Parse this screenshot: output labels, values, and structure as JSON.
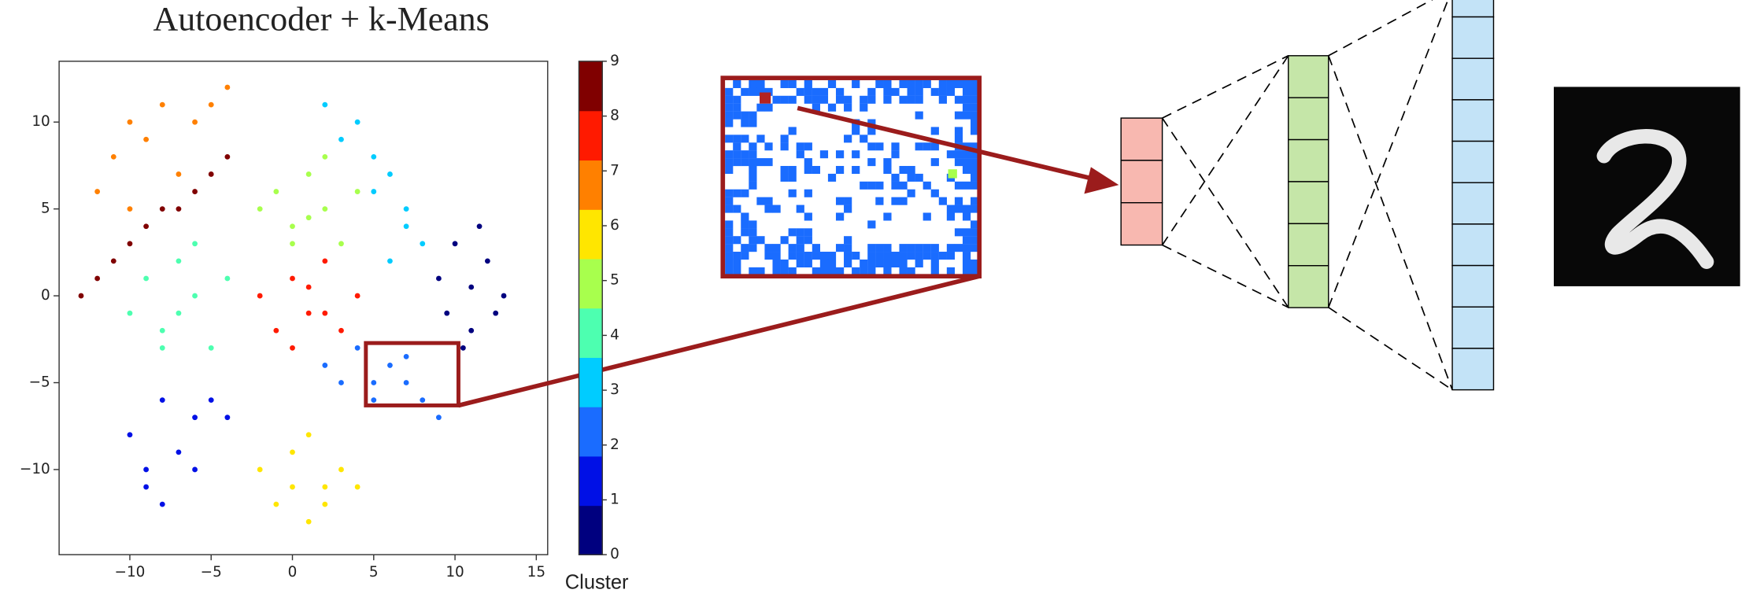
{
  "chart_data": {
    "type": "scatter",
    "title": "Autoencoder + k-Means",
    "xlim": [
      -14.35,
      15.7
    ],
    "ylim": [
      -14.9,
      13.5
    ],
    "xticks": [
      {
        "value": -10,
        "label": "−10"
      },
      {
        "value": -5,
        "label": "−5"
      },
      0,
      5,
      10,
      15
    ],
    "yticks": [
      {
        "value": -10,
        "label": "−10"
      },
      {
        "value": -5,
        "label": "−5"
      },
      0,
      5,
      10
    ],
    "colorbar": {
      "label": "Cluster",
      "clim": [
        0,
        9
      ],
      "ticks": [
        0,
        1,
        2,
        3,
        4,
        5,
        6,
        7,
        8,
        9
      ]
    },
    "series": [
      {
        "color": "#00007f",
        "x": [
          9,
          10,
          11,
          12,
          13,
          10.5,
          11.5,
          12.5,
          9.5,
          11
        ],
        "y": [
          1,
          3,
          -2,
          2,
          0,
          -3,
          4,
          -1,
          -1,
          0.5
        ]
      },
      {
        "color": "#0010e6",
        "x": [
          -10,
          -9,
          -8,
          -6,
          -5,
          -4,
          -7,
          -9,
          -8,
          -6
        ],
        "y": [
          -8,
          -10,
          -6,
          -7,
          -6,
          -7,
          -9,
          -11,
          -12,
          -10
        ]
      },
      {
        "color": "#1a6cff",
        "x": [
          2,
          3,
          4,
          5,
          6,
          7,
          8,
          9,
          5,
          7
        ],
        "y": [
          -4,
          -5,
          -3,
          -6,
          -4,
          -5,
          -6,
          -7,
          -5,
          -3.5
        ]
      },
      {
        "color": "#00ccff",
        "x": [
          2,
          3,
          4,
          5,
          6,
          7,
          8,
          6,
          7,
          5
        ],
        "y": [
          11,
          9,
          10,
          8,
          7,
          5,
          3,
          2,
          4,
          6
        ]
      },
      {
        "color": "#4dffb0",
        "x": [
          -10,
          -9,
          -8,
          -7,
          -6,
          -5,
          -4,
          -8,
          -6,
          -7
        ],
        "y": [
          -1,
          1,
          -2,
          2,
          0,
          -3,
          1,
          -3,
          3,
          -1
        ]
      },
      {
        "color": "#a8ff4d",
        "x": [
          -2,
          -1,
          0,
          1,
          2,
          3,
          4,
          0,
          2,
          1
        ],
        "y": [
          5,
          6,
          4,
          7,
          5,
          3,
          6,
          3,
          8,
          4.5
        ]
      },
      {
        "color": "#ffe600",
        "x": [
          -2,
          -1,
          0,
          1,
          2,
          3,
          4,
          1,
          0,
          2
        ],
        "y": [
          -10,
          -12,
          -9,
          -13,
          -11,
          -10,
          -11,
          -8,
          -11,
          -12
        ]
      },
      {
        "color": "#ff8000",
        "x": [
          -12,
          -11,
          -10,
          -9,
          -8,
          -7,
          -6,
          -5,
          -4,
          -10
        ],
        "y": [
          6,
          8,
          10,
          9,
          11,
          7,
          10,
          11,
          12,
          5
        ]
      },
      {
        "color": "#ff1a00",
        "x": [
          -2,
          -1,
          0,
          1,
          2,
          3,
          4,
          0,
          2,
          1
        ],
        "y": [
          0,
          -2,
          1,
          -1,
          2,
          -2,
          0,
          -3,
          -1,
          0.5
        ]
      },
      {
        "color": "#800000",
        "x": [
          -13,
          -12,
          -11,
          -10,
          -9,
          -8,
          -7,
          -6,
          -5,
          -4
        ],
        "y": [
          0,
          1,
          2,
          3,
          4,
          5,
          5,
          6,
          7,
          8
        ]
      }
    ]
  }
}
